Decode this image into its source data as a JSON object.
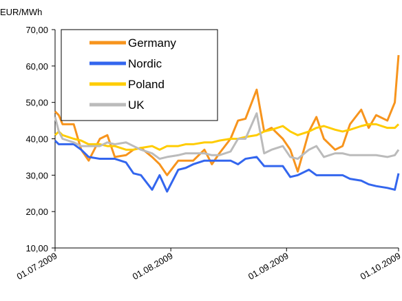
{
  "chart_data": {
    "type": "line",
    "y_label": "EUR/MWh",
    "x": [
      "01.07.2009",
      "02.07.2009",
      "03.07.2009",
      "06.07.2009",
      "08.07.2009",
      "10.07.2009",
      "13.07.2009",
      "15.07.2009",
      "17.07.2009",
      "20.07.2009",
      "22.07.2009",
      "24.07.2009",
      "27.07.2009",
      "29.07.2009",
      "31.07.2009",
      "03.08.2009",
      "05.08.2009",
      "07.08.2009",
      "10.08.2009",
      "12.08.2009",
      "14.08.2009",
      "17.08.2009",
      "19.08.2009",
      "21.08.2009",
      "24.08.2009",
      "26.08.2009",
      "28.08.2009",
      "31.08.2009",
      "02.09.2009",
      "04.09.2009",
      "07.09.2009",
      "09.09.2009",
      "11.09.2009",
      "14.09.2009",
      "16.09.2009",
      "18.09.2009",
      "21.09.2009",
      "23.09.2009",
      "25.09.2009",
      "28.09.2009",
      "30.09.2009",
      "01.10.2009"
    ],
    "series": [
      {
        "name": "Germany",
        "color": "#f7941d",
        "values": [
          47.5,
          46.5,
          44,
          44,
          37,
          34,
          40,
          41,
          35,
          35.5,
          37,
          37.5,
          35,
          33,
          30,
          34,
          34,
          34,
          37,
          33,
          36,
          40,
          45,
          45.5,
          53.5,
          42,
          43,
          40,
          37,
          31,
          42,
          46,
          40,
          37,
          38,
          44,
          48,
          43,
          46.5,
          45,
          50,
          63
        ]
      },
      {
        "name": "Nordic",
        "color": "#3366ee",
        "values": [
          39.5,
          38.5,
          38.5,
          38.5,
          37,
          35,
          34.5,
          34.5,
          34.5,
          33.5,
          30.5,
          30,
          26,
          30,
          25.5,
          31.5,
          32,
          33,
          34,
          34,
          34,
          34,
          33,
          34.5,
          35,
          32.5,
          32.5,
          32.5,
          29.5,
          30,
          31.5,
          30,
          30,
          30,
          30,
          29,
          28.5,
          27.5,
          27,
          26.5,
          26,
          30.5
        ]
      },
      {
        "name": "Poland",
        "color": "#ffcc00",
        "values": [
          41,
          42,
          41,
          40,
          39.5,
          38.5,
          38.5,
          38,
          38,
          37,
          37,
          37.5,
          38,
          37,
          38,
          38,
          38.5,
          38.5,
          39,
          39,
          39.5,
          40,
          40,
          40.5,
          41,
          42,
          42.5,
          43.5,
          42,
          41,
          42,
          43,
          43.5,
          42.5,
          42,
          42.5,
          43.5,
          44,
          44,
          43,
          43,
          44
        ]
      },
      {
        "name": "UK",
        "color": "#bbbbbb",
        "values": [
          46,
          42,
          40,
          39,
          38,
          38,
          38,
          39,
          38.5,
          39,
          38,
          37,
          36,
          34.5,
          35,
          35.5,
          36,
          36,
          36,
          35.5,
          35.5,
          36.5,
          40,
          40,
          47,
          36,
          37,
          38,
          35,
          34.5,
          37,
          38,
          35,
          36,
          36,
          35.5,
          35.5,
          35.5,
          35.5,
          35,
          35.5,
          37
        ]
      }
    ],
    "xlim": [
      "01.07.2009",
      "01.10.2009"
    ],
    "xticks": [
      "01.07.2009",
      "01.08.2009",
      "01.09.2009",
      "01.10.2009"
    ],
    "ylim": [
      10,
      70
    ],
    "yticks": [
      {
        "value": 10,
        "label": "10,00"
      },
      {
        "value": 20,
        "label": "20,00"
      },
      {
        "value": 30,
        "label": "30,00"
      },
      {
        "value": 40,
        "label": "40,00"
      },
      {
        "value": 50,
        "label": "50,00"
      },
      {
        "value": 60,
        "label": "60,00"
      },
      {
        "value": 70,
        "label": "70,00"
      }
    ],
    "legend": "upper left"
  }
}
